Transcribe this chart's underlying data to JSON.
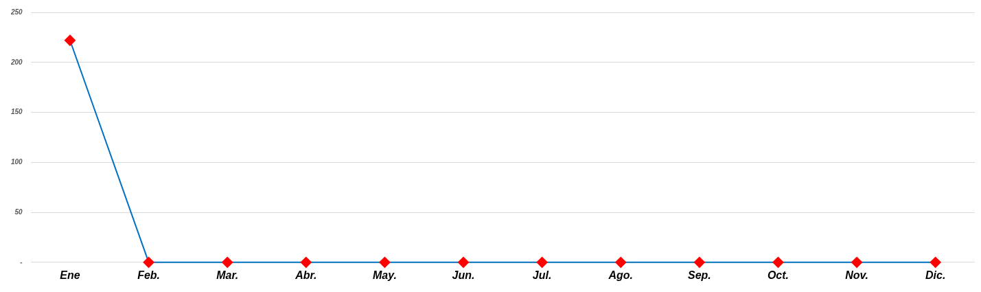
{
  "chart_data": {
    "type": "line",
    "categories": [
      "Ene",
      "Feb.",
      "Mar.",
      "Abr.",
      "May.",
      "Jun.",
      "Jul.",
      "Ago.",
      "Sep.",
      "Oct.",
      "Nov.",
      "Dic."
    ],
    "series": [
      {
        "color": "#0070c0",
        "colors": [
          "#ff0000",
          "#ff0000",
          "#ff0000",
          "#ff0000",
          "#ff0000",
          "#ff0000",
          "#ff0000",
          "#ff0000",
          "#ff0000",
          "#ff0000",
          "#ff0000",
          "#ff0000"
        ],
        "values": [
          222,
          0,
          0,
          0,
          0,
          0,
          0,
          0,
          0,
          0,
          0,
          0
        ]
      }
    ],
    "ylim": [
      0,
      250
    ],
    "yticks": [
      {
        "value": 0,
        "label": "-"
      },
      50,
      100,
      150,
      200,
      250
    ],
    "grid": "y",
    "marker": "diamond",
    "line_style": "solid",
    "legend": false
  }
}
